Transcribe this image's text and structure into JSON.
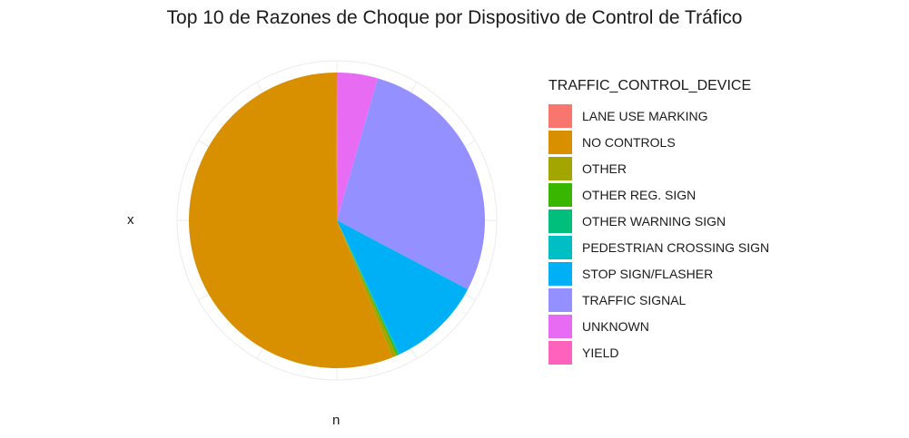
{
  "chart_data": {
    "type": "pie",
    "title": "Top 10 de Razones de Choque por Dispositivo de Control de Tráfico",
    "xlabel": "n",
    "ylabel": "x",
    "legend_title": "TRAFFIC_CONTROL_DEVICE",
    "legend_position": "right",
    "categories": [
      "LANE USE MARKING",
      "NO CONTROLS",
      "OTHER",
      "OTHER REG. SIGN",
      "OTHER WARNING SIGN",
      "PEDESTRIAN CROSSING SIGN",
      "STOP SIGN/FLASHER",
      "TRAFFIC SIGNAL",
      "UNKNOWN",
      "YIELD"
    ],
    "values": [
      0.05,
      56.1,
      0.5,
      0.15,
      0.1,
      0.1,
      10.3,
      28.3,
      4.4,
      0.05
    ],
    "colors": [
      "#F8766D",
      "#D89000",
      "#A3A500",
      "#39B600",
      "#00BF7D",
      "#00BFC4",
      "#00B0F6",
      "#9590FF",
      "#E76BF3",
      "#FF62BC"
    ],
    "grid": true
  }
}
